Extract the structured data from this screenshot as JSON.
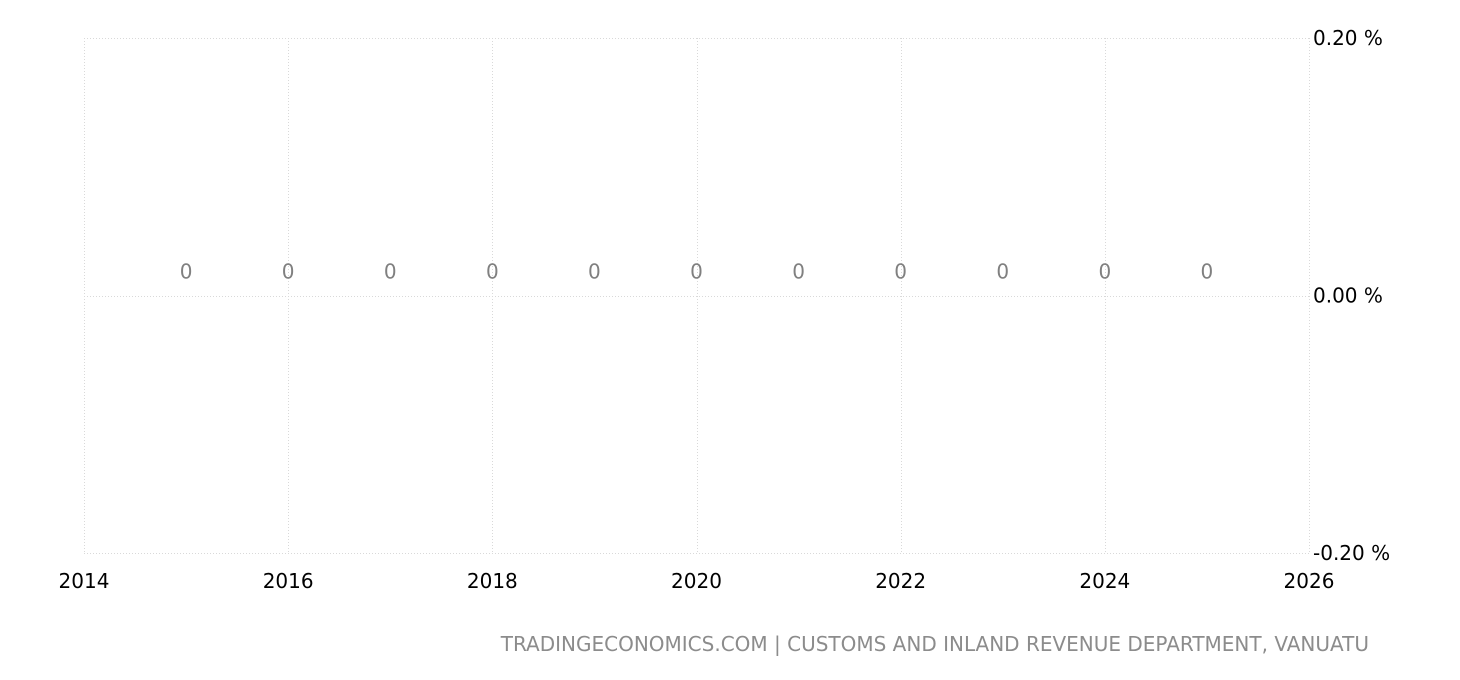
{
  "chart_data": {
    "type": "bar",
    "title": "",
    "xlabel": "",
    "ylabel": "",
    "x": [
      2015,
      2016,
      2017,
      2018,
      2019,
      2020,
      2021,
      2022,
      2023,
      2024,
      2025
    ],
    "values": [
      0,
      0,
      0,
      0,
      0,
      0,
      0,
      0,
      0,
      0,
      0
    ],
    "data_labels": [
      "0",
      "0",
      "0",
      "0",
      "0",
      "0",
      "0",
      "0",
      "0",
      "0",
      "0"
    ],
    "xlim": [
      2014,
      2026
    ],
    "ylim": [
      -0.2,
      0.2
    ],
    "x_ticks": [
      2014,
      2016,
      2018,
      2020,
      2022,
      2024,
      2026
    ],
    "x_tick_labels": [
      "2014",
      "2016",
      "2018",
      "2020",
      "2022",
      "2024",
      "2026"
    ],
    "y_ticks": [
      0.2,
      0.0,
      -0.2
    ],
    "y_tick_labels": [
      "0.20 %",
      "0.00 %",
      "-0.20 %"
    ],
    "grid": true,
    "y_axis_position": "right",
    "legend": "none",
    "colors": {
      "grid": "#d9d9d9",
      "data_label": "#808080",
      "tick_text": "#000000",
      "source_text": "#8c8c8c"
    }
  },
  "source": {
    "text": "TRADINGECONOMICS.COM | CUSTOMS AND INLAND REVENUE DEPARTMENT, VANUATU"
  }
}
